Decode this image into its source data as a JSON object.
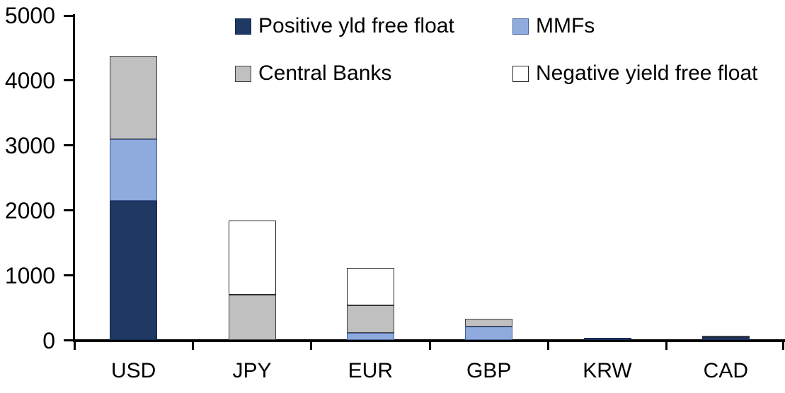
{
  "chart_data": {
    "type": "bar",
    "stacked": true,
    "title": "",
    "xlabel": "",
    "ylabel": "",
    "background_color": "#ffffff",
    "axis_color": "#000000",
    "grid": false,
    "legend_position": "top",
    "categories": [
      "USD",
      "JPY",
      "EUR",
      "GBP",
      "KRW",
      "CAD"
    ],
    "yticks": [
      0,
      1000,
      2000,
      3000,
      4000,
      5000
    ],
    "ylim": [
      0,
      5000
    ],
    "series": [
      {
        "name": "Positive yld free float",
        "color": "#1f3864",
        "border_color": "#16294e",
        "values": [
          2150,
          0,
          0,
          0,
          40,
          45
        ]
      },
      {
        "name": "MMFs",
        "color": "#8faadc",
        "border_color": "#46619c",
        "values": [
          950,
          0,
          110,
          215,
          0,
          0
        ]
      },
      {
        "name": "Central Banks",
        "color": "#c0c0c0",
        "border_color": "#3f3f3f",
        "values": [
          1280,
          700,
          430,
          115,
          0,
          25
        ]
      },
      {
        "name": "Negative yield free float",
        "color": "#ffffff",
        "border_color": "#262626",
        "values": [
          0,
          1140,
          570,
          0,
          0,
          0
        ]
      }
    ]
  }
}
